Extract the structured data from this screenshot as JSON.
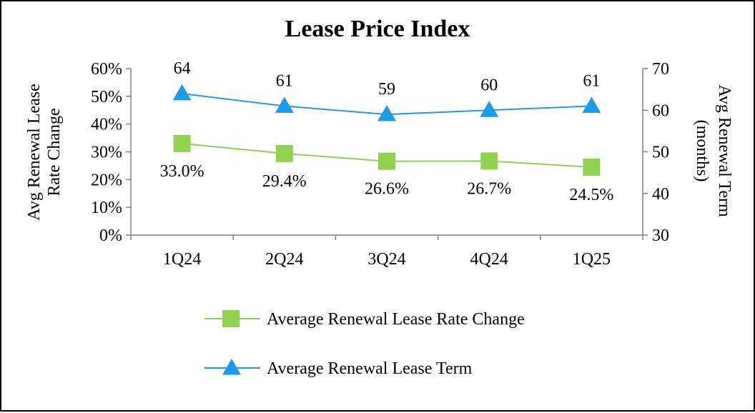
{
  "chart_data": {
    "type": "line",
    "title": "Lease Price Index",
    "categories": [
      "1Q24",
      "2Q24",
      "3Q24",
      "4Q24",
      "1Q25"
    ],
    "y_left": {
      "label_lines": [
        "Avg Renewal Lease",
        "Rate Change"
      ],
      "lim": [
        0,
        60
      ],
      "ticks": [
        0,
        10,
        20,
        30,
        40,
        50,
        60
      ],
      "tick_labels": [
        "0%",
        "10%",
        "20%",
        "30%",
        "40%",
        "50%",
        "60%"
      ]
    },
    "y_right": {
      "label_lines": [
        "Avg Renewal Term",
        "(months)"
      ],
      "lim": [
        30,
        70
      ],
      "ticks": [
        30,
        40,
        50,
        60,
        70
      ],
      "tick_labels": [
        "30",
        "40",
        "50",
        "60",
        "70"
      ]
    },
    "series": [
      {
        "name": "Average Renewal Lease Rate Change",
        "axis": "left",
        "color": "#92D050",
        "marker": "square",
        "values": [
          33.0,
          29.4,
          26.6,
          26.7,
          24.5
        ],
        "labels": [
          "33.0%",
          "29.4%",
          "26.6%",
          "26.7%",
          "24.5%"
        ]
      },
      {
        "name": "Average Renewal Lease Term",
        "axis": "right",
        "color": "#1E9BE8",
        "marker": "triangle",
        "values": [
          64,
          61,
          59,
          60,
          61
        ],
        "labels": [
          "64",
          "61",
          "59",
          "60",
          "61"
        ]
      }
    ],
    "grid": false,
    "legend_position": "bottom"
  }
}
